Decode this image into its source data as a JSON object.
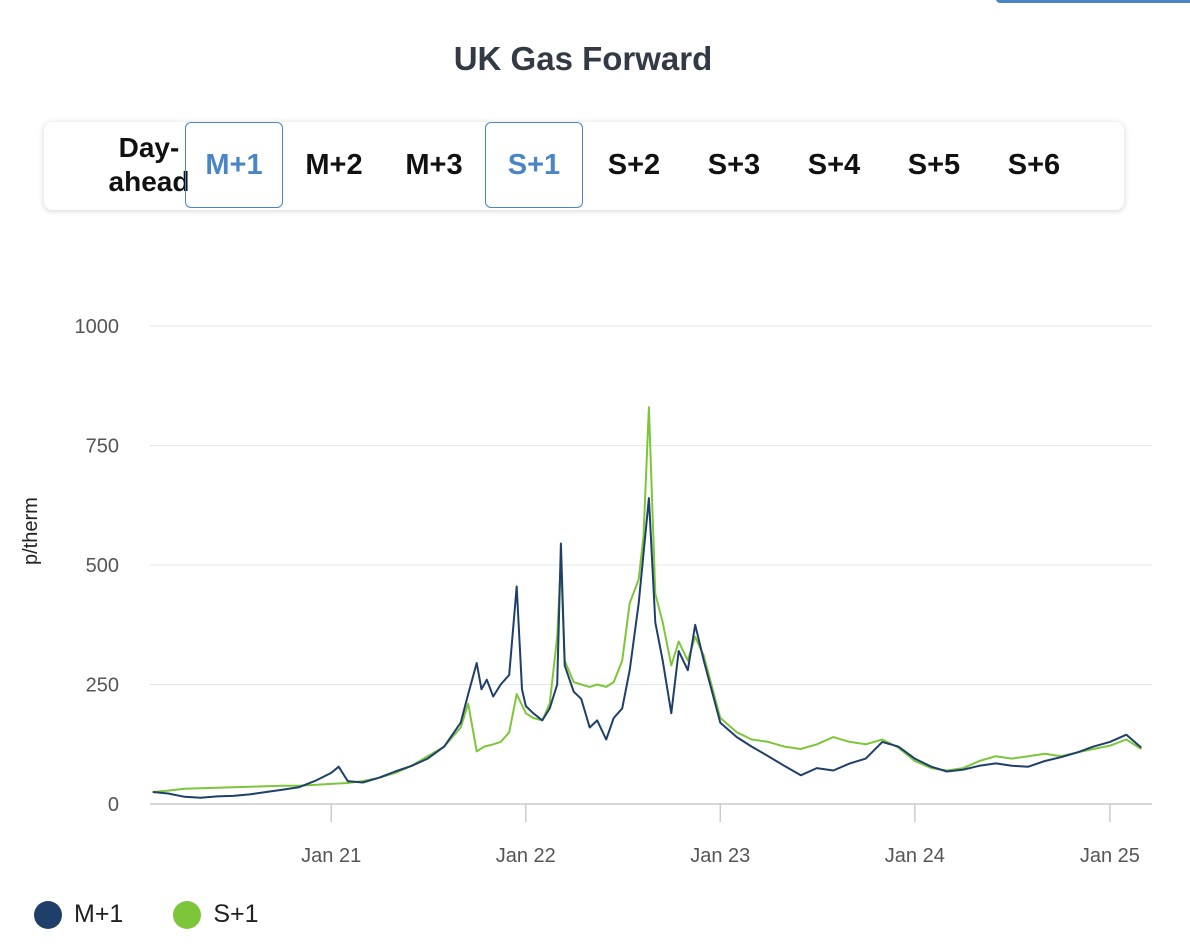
{
  "title": "UK Gas Forward",
  "tabs": [
    {
      "label": "Day-ahead",
      "selected": false
    },
    {
      "label": "M+1",
      "selected": true
    },
    {
      "label": "M+2",
      "selected": false
    },
    {
      "label": "M+3",
      "selected": false
    },
    {
      "label": "S+1",
      "selected": true
    },
    {
      "label": "S+2",
      "selected": false
    },
    {
      "label": "S+3",
      "selected": false
    },
    {
      "label": "S+4",
      "selected": false
    },
    {
      "label": "S+5",
      "selected": false
    },
    {
      "label": "S+6",
      "selected": false
    }
  ],
  "colors": {
    "accent": "#4a86c6",
    "m1": "#1f3f6b",
    "s1": "#7dc63a",
    "grid": "#e4e6ea"
  },
  "chart_data": {
    "type": "line",
    "title": "UK Gas Forward",
    "xlabel": "",
    "ylabel": "p/therm",
    "ylim": [
      0,
      1000
    ],
    "yticks": [
      "0",
      "250",
      "500",
      "750",
      "1000"
    ],
    "xticks": [
      "Jan 21",
      "Jan 22",
      "Jan 23",
      "Jan 24",
      "Jan 25"
    ],
    "xlim": [
      "2020-02",
      "2025-03"
    ],
    "grid": true,
    "legend": "bottom-left",
    "series": [
      {
        "name": "M+1",
        "color": "#1f3f6b",
        "points": [
          [
            "2020-02",
            25
          ],
          [
            "2020-03",
            22
          ],
          [
            "2020-04",
            15
          ],
          [
            "2020-05",
            13
          ],
          [
            "2020-06",
            16
          ],
          [
            "2020-07",
            17
          ],
          [
            "2020-08",
            20
          ],
          [
            "2020-09",
            25
          ],
          [
            "2020-10",
            30
          ],
          [
            "2020-11",
            35
          ],
          [
            "2020-12",
            48
          ],
          [
            "2021-01",
            65
          ],
          [
            "2021-01-15",
            78
          ],
          [
            "2021-02",
            48
          ],
          [
            "2021-03",
            45
          ],
          [
            "2021-04",
            55
          ],
          [
            "2021-05",
            68
          ],
          [
            "2021-06",
            80
          ],
          [
            "2021-07",
            95
          ],
          [
            "2021-08",
            120
          ],
          [
            "2021-09",
            170
          ],
          [
            "2021-09-15",
            230
          ],
          [
            "2021-10",
            295
          ],
          [
            "2021-10-10",
            240
          ],
          [
            "2021-10-20",
            260
          ],
          [
            "2021-11",
            225
          ],
          [
            "2021-11-15",
            250
          ],
          [
            "2021-12",
            270
          ],
          [
            "2021-12-15",
            455
          ],
          [
            "2021-12-25",
            240
          ],
          [
            "2022-01",
            205
          ],
          [
            "2022-01-15",
            190
          ],
          [
            "2022-02",
            175
          ],
          [
            "2022-02-15",
            200
          ],
          [
            "2022-03",
            250
          ],
          [
            "2022-03-08",
            545
          ],
          [
            "2022-03-15",
            290
          ],
          [
            "2022-04",
            235
          ],
          [
            "2022-04-15",
            220
          ],
          [
            "2022-05",
            160
          ],
          [
            "2022-05-15",
            175
          ],
          [
            "2022-06",
            135
          ],
          [
            "2022-06-15",
            180
          ],
          [
            "2022-07",
            200
          ],
          [
            "2022-07-15",
            280
          ],
          [
            "2022-08",
            420
          ],
          [
            "2022-08-20",
            640
          ],
          [
            "2022-09",
            380
          ],
          [
            "2022-09-15",
            300
          ],
          [
            "2022-10",
            190
          ],
          [
            "2022-10-15",
            320
          ],
          [
            "2022-11",
            280
          ],
          [
            "2022-11-15",
            375
          ],
          [
            "2022-12",
            300
          ],
          [
            "2023-01",
            170
          ],
          [
            "2023-02",
            140
          ],
          [
            "2023-03",
            120
          ],
          [
            "2023-04",
            100
          ],
          [
            "2023-05",
            80
          ],
          [
            "2023-06",
            60
          ],
          [
            "2023-07",
            75
          ],
          [
            "2023-08",
            70
          ],
          [
            "2023-09",
            85
          ],
          [
            "2023-10",
            95
          ],
          [
            "2023-11",
            130
          ],
          [
            "2023-12",
            120
          ],
          [
            "2024-01",
            95
          ],
          [
            "2024-02",
            78
          ],
          [
            "2024-03",
            68
          ],
          [
            "2024-04",
            72
          ],
          [
            "2024-05",
            80
          ],
          [
            "2024-06",
            85
          ],
          [
            "2024-07",
            80
          ],
          [
            "2024-08",
            78
          ],
          [
            "2024-09",
            90
          ],
          [
            "2024-10",
            98
          ],
          [
            "2024-11",
            108
          ],
          [
            "2024-12",
            120
          ],
          [
            "2025-01",
            130
          ],
          [
            "2025-02",
            145
          ],
          [
            "2025-03",
            118
          ]
        ]
      },
      {
        "name": "S+1",
        "color": "#7dc63a",
        "points": [
          [
            "2020-02",
            25
          ],
          [
            "2020-03",
            28
          ],
          [
            "2020-04",
            32
          ],
          [
            "2020-05",
            33
          ],
          [
            "2020-06",
            34
          ],
          [
            "2020-07",
            35
          ],
          [
            "2020-08",
            36
          ],
          [
            "2020-09",
            37
          ],
          [
            "2020-10",
            38
          ],
          [
            "2020-11",
            38
          ],
          [
            "2020-12",
            40
          ],
          [
            "2021-01",
            42
          ],
          [
            "2021-02",
            44
          ],
          [
            "2021-03",
            48
          ],
          [
            "2021-04",
            55
          ],
          [
            "2021-05",
            65
          ],
          [
            "2021-06",
            80
          ],
          [
            "2021-07",
            100
          ],
          [
            "2021-08",
            120
          ],
          [
            "2021-09",
            160
          ],
          [
            "2021-09-15",
            210
          ],
          [
            "2021-10",
            110
          ],
          [
            "2021-10-15",
            120
          ],
          [
            "2021-11",
            125
          ],
          [
            "2021-11-15",
            130
          ],
          [
            "2021-12",
            150
          ],
          [
            "2021-12-15",
            230
          ],
          [
            "2022-01",
            190
          ],
          [
            "2022-01-15",
            180
          ],
          [
            "2022-02",
            175
          ],
          [
            "2022-02-15",
            210
          ],
          [
            "2022-03",
            350
          ],
          [
            "2022-03-08",
            510
          ],
          [
            "2022-03-15",
            300
          ],
          [
            "2022-04",
            255
          ],
          [
            "2022-04-15",
            250
          ],
          [
            "2022-05",
            245
          ],
          [
            "2022-05-15",
            250
          ],
          [
            "2022-06",
            245
          ],
          [
            "2022-06-15",
            255
          ],
          [
            "2022-07",
            300
          ],
          [
            "2022-07-15",
            420
          ],
          [
            "2022-08",
            470
          ],
          [
            "2022-08-10",
            560
          ],
          [
            "2022-08-20",
            830
          ],
          [
            "2022-09",
            440
          ],
          [
            "2022-09-15",
            380
          ],
          [
            "2022-10",
            290
          ],
          [
            "2022-10-15",
            340
          ],
          [
            "2022-11",
            300
          ],
          [
            "2022-11-15",
            350
          ],
          [
            "2022-12",
            310
          ],
          [
            "2023-01",
            180
          ],
          [
            "2023-02",
            150
          ],
          [
            "2023-03",
            135
          ],
          [
            "2023-04",
            130
          ],
          [
            "2023-05",
            120
          ],
          [
            "2023-06",
            115
          ],
          [
            "2023-07",
            125
          ],
          [
            "2023-08",
            140
          ],
          [
            "2023-09",
            130
          ],
          [
            "2023-10",
            125
          ],
          [
            "2023-11",
            135
          ],
          [
            "2023-12",
            118
          ],
          [
            "2024-01",
            90
          ],
          [
            "2024-02",
            75
          ],
          [
            "2024-03",
            70
          ],
          [
            "2024-04",
            75
          ],
          [
            "2024-05",
            90
          ],
          [
            "2024-06",
            100
          ],
          [
            "2024-07",
            95
          ],
          [
            "2024-08",
            100
          ],
          [
            "2024-09",
            105
          ],
          [
            "2024-10",
            100
          ],
          [
            "2024-11",
            108
          ],
          [
            "2024-12",
            115
          ],
          [
            "2025-01",
            122
          ],
          [
            "2025-02",
            135
          ],
          [
            "2025-03",
            115
          ]
        ]
      }
    ]
  }
}
